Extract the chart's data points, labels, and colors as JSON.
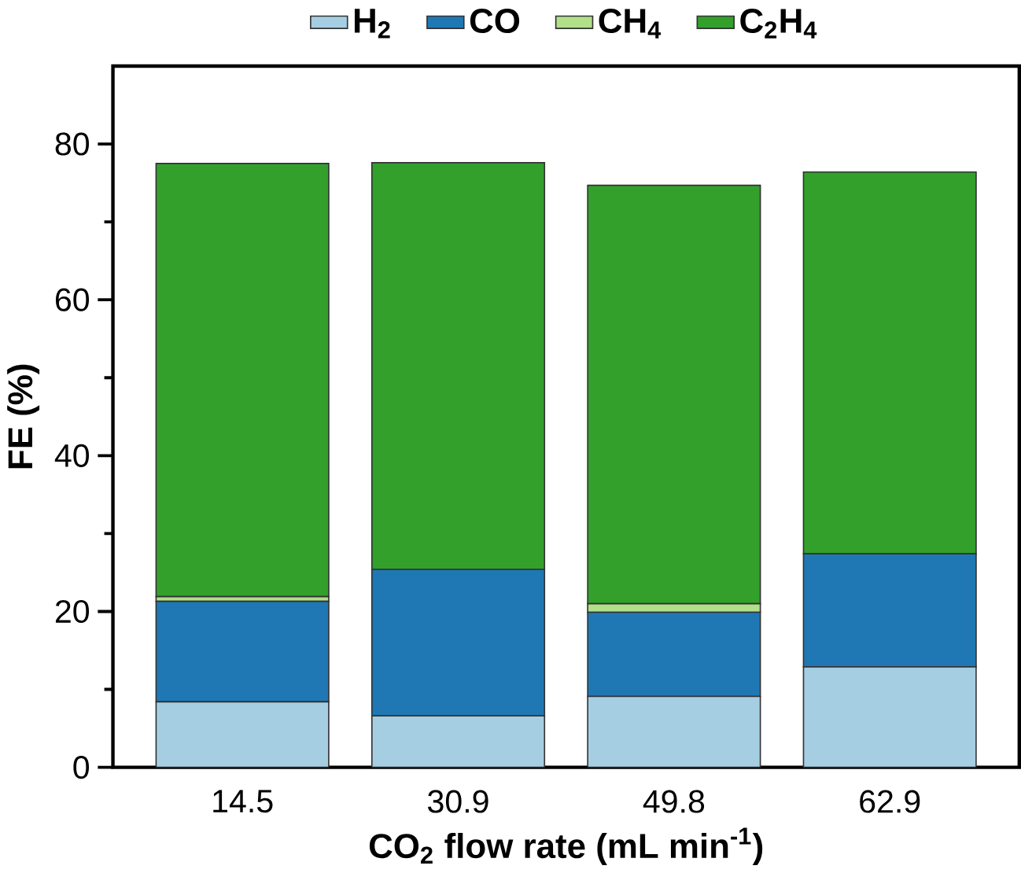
{
  "chart_data": {
    "type": "bar",
    "stacked": true,
    "xlabel": "CO$_{2}$ flow rate (mL min$^{-1}$)",
    "ylabel": "FE (%)",
    "categories": [
      "14.5",
      "30.9",
      "49.8",
      "62.9"
    ],
    "series": [
      {
        "name": "H$_{2}$",
        "color": "#a6cee3",
        "values": [
          8.4,
          6.6,
          9.1,
          12.9
        ]
      },
      {
        "name": "CO",
        "color": "#1f78b4",
        "values": [
          12.9,
          18.8,
          10.8,
          14.5
        ]
      },
      {
        "name": "CH$_{4}$",
        "color": "#b2df8a",
        "values": [
          0.6,
          null,
          1.1,
          0
        ]
      },
      {
        "name": "C$_{2}$H$_{4}$",
        "color": "#33a02c",
        "values": [
          55.6,
          52.2,
          53.7,
          49.0
        ]
      }
    ],
    "ylim": [
      0,
      90
    ],
    "yticks": [
      0,
      20,
      40,
      60,
      80
    ],
    "grid": false,
    "legend": "top"
  }
}
